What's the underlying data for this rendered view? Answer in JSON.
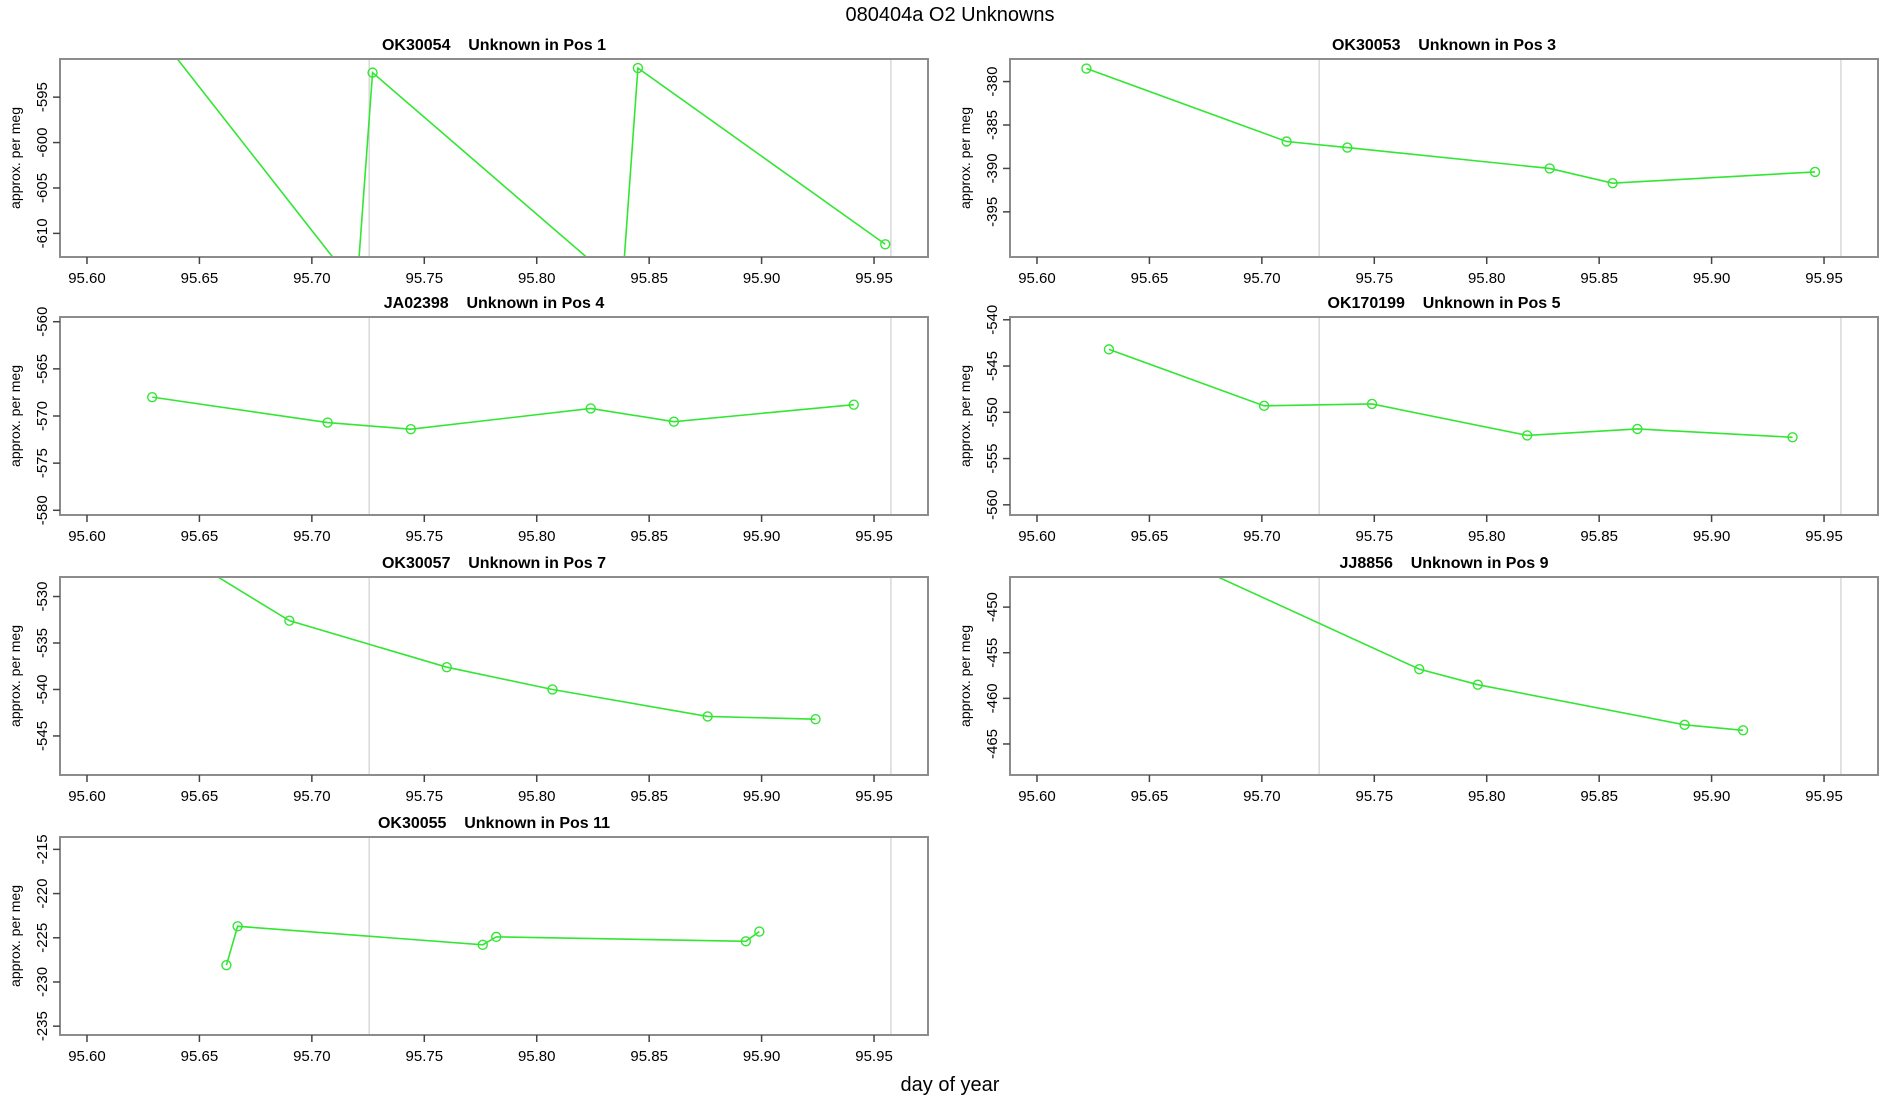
{
  "figure": {
    "title": "080404a  O2 Unknowns",
    "xlabel": "day of year",
    "series_color": "#33e633",
    "reference_line_color": "#d9d9d9",
    "box_color": "#8c8c8c",
    "tick_color": "#444444",
    "xlim": [
      95.588,
      95.974
    ],
    "xtick_labels": [
      "95.60",
      "95.65",
      "95.70",
      "95.75",
      "95.80",
      "95.85",
      "95.90",
      "95.95"
    ],
    "reference_lines_x": [
      95.7255,
      95.9575
    ]
  },
  "chart_data": [
    {
      "type": "line",
      "sample": "OK30054",
      "desc": "Unknown in Pos 1",
      "ylabel": "approx. per meg",
      "row": 0,
      "col": 0,
      "ylim": [
        -612.6,
        -590.8
      ],
      "yticks": [
        -610,
        -605,
        -600,
        -595
      ],
      "x": [
        95.625,
        95.72,
        95.727,
        95.838,
        95.845,
        95.955
      ],
      "y": [
        -586.0,
        -616.0,
        -592.3,
        -616.0,
        -591.8,
        -611.2
      ]
    },
    {
      "type": "line",
      "sample": "OK30053",
      "desc": "Unknown in Pos 3",
      "ylabel": "approx. per meg",
      "row": 0,
      "col": 1,
      "ylim": [
        -400.2,
        -377.4
      ],
      "yticks": [
        -395,
        -390,
        -385,
        -380
      ],
      "x": [
        95.622,
        95.711,
        95.738,
        95.828,
        95.856,
        95.946
      ],
      "y": [
        -378.5,
        -386.9,
        -387.6,
        -390.0,
        -391.7,
        -390.4
      ]
    },
    {
      "type": "line",
      "sample": "JA02398",
      "desc": "Unknown in Pos 4",
      "ylabel": "approx. per meg",
      "row": 1,
      "col": 0,
      "ylim": [
        -580.5,
        -559.5
      ],
      "yticks": [
        -580,
        -575,
        -570,
        -565,
        -560
      ],
      "x": [
        95.629,
        95.707,
        95.744,
        95.824,
        95.861,
        95.941
      ],
      "y": [
        -568.0,
        -570.7,
        -571.4,
        -569.2,
        -570.6,
        -568.8
      ]
    },
    {
      "type": "line",
      "sample": "OK170199",
      "desc": "Unknown in Pos 5",
      "ylabel": "approx. per meg",
      "row": 1,
      "col": 1,
      "ylim": [
        -561.1,
        -539.7
      ],
      "yticks": [
        -560,
        -555,
        -550,
        -545,
        -540
      ],
      "x": [
        95.632,
        95.701,
        95.749,
        95.818,
        95.867,
        95.936
      ],
      "y": [
        -543.2,
        -549.3,
        -549.1,
        -552.5,
        -551.8,
        -552.7
      ]
    },
    {
      "type": "line",
      "sample": "OK30057",
      "desc": "Unknown in Pos 7",
      "ylabel": "approx. per meg",
      "row": 2,
      "col": 0,
      "ylim": [
        -549.2,
        -527.9
      ],
      "yticks": [
        -545,
        -540,
        -535,
        -530
      ],
      "x": [
        95.64,
        95.69,
        95.76,
        95.807,
        95.876,
        95.924
      ],
      "y": [
        -525.2,
        -532.6,
        -537.6,
        -540.0,
        -542.9,
        -543.2
      ]
    },
    {
      "type": "line",
      "sample": "JJ8856",
      "desc": "Unknown in Pos 9",
      "ylabel": "approx. per meg",
      "row": 2,
      "col": 1,
      "ylim": [
        -468.4,
        -446.7
      ],
      "yticks": [
        -465,
        -460,
        -455,
        -450
      ],
      "x": [
        95.63,
        95.77,
        95.796,
        95.888,
        95.914
      ],
      "y": [
        -441.0,
        -456.8,
        -458.5,
        -462.9,
        -463.5
      ]
    },
    {
      "type": "line",
      "sample": "OK30055",
      "desc": "Unknown in Pos 11",
      "ylabel": "approx. per meg",
      "row": 3,
      "col": 0,
      "ylim": [
        -236.0,
        -213.6
      ],
      "yticks": [
        -235,
        -230,
        -225,
        -220,
        -215
      ],
      "x": [
        95.662,
        95.667,
        95.776,
        95.782,
        95.893,
        95.899
      ],
      "y": [
        -228.1,
        -223.7,
        -225.8,
        -224.9,
        -225.4,
        -224.3
      ]
    }
  ]
}
